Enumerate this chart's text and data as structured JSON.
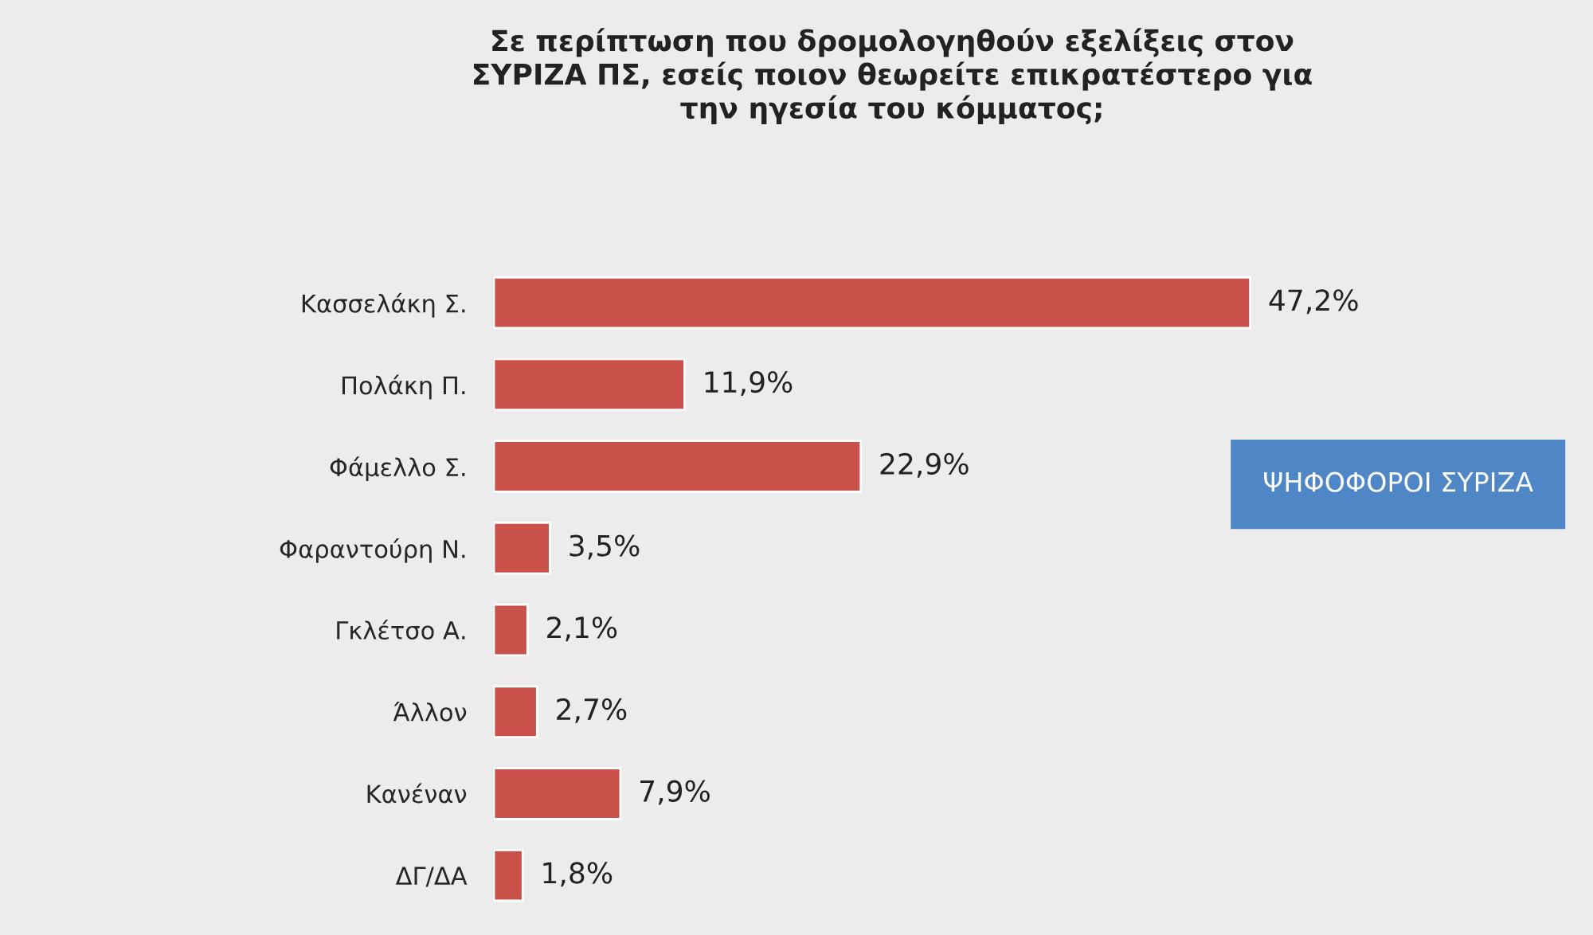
{
  "chart_data": {
    "type": "bar",
    "orientation": "horizontal",
    "title": "Σε περίπτωση που δρομολογηθούν εξελίξεις στον\nΣΥΡΙΖΑ ΠΣ, εσείς ποιον θεωρείτε επικρατέστερο για\nτην ηγεσία του κόμματος;",
    "categories": [
      "Κασσελάκη Σ.",
      "Πολάκη Π.",
      "Φάμελλο Σ.",
      "Φαραντούρη Ν.",
      "Γκλέτσο Α.",
      "Άλλον",
      "Κανέναν",
      "ΔΓ/ΔΑ"
    ],
    "values": [
      47.2,
      11.9,
      22.9,
      3.5,
      2.1,
      2.7,
      7.9,
      1.8
    ],
    "value_labels": [
      "47,2%",
      "11,9%",
      "22,9%",
      "3,5%",
      "2,1%",
      "2,7%",
      "7,9%",
      "1,8%"
    ],
    "color": "#c9514a",
    "annotations": [
      "ΨΗΦΟΦΟΡΟΙ ΣΥΡΙΖΑ"
    ],
    "grid": false,
    "legend": false
  }
}
